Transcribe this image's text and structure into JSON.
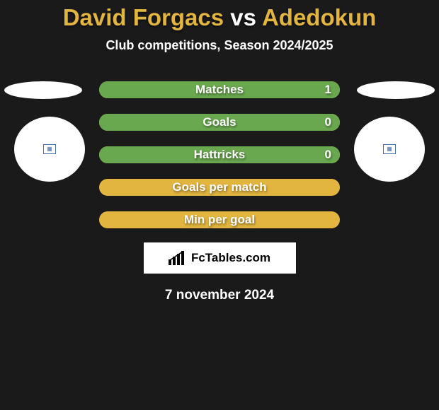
{
  "title": {
    "player1": "David Forgacs",
    "vs_word": "vs",
    "player2": "Adedokun",
    "font_size": 33,
    "color_player": "#e2b440",
    "color_vs": "#ffffff"
  },
  "subtitle": {
    "text": "Club competitions, Season 2024/2025",
    "color": "#ffffff",
    "font_size": 18
  },
  "avatars": {
    "left_oval_color": "#ffffff",
    "right_oval_color": "#ffffff",
    "circle_bg": "#ffffff",
    "inner_border_color": "#4a6fb0",
    "inner_icon_glyph": "▦",
    "inner_icon_color": "#4a6fb0"
  },
  "chart": {
    "bar_bg": "#e2b440",
    "bar_fill": "#6aa84f",
    "label_color": "#ffffff",
    "label_font_size": 17,
    "value_font_size": 17,
    "rows": [
      {
        "label": "Matches",
        "value": "1",
        "fill_pct": 100
      },
      {
        "label": "Goals",
        "value": "0",
        "fill_pct": 100
      },
      {
        "label": "Hattricks",
        "value": "0",
        "fill_pct": 100
      },
      {
        "label": "Goals per match",
        "value": "",
        "fill_pct": 0
      },
      {
        "label": "Min per goal",
        "value": "",
        "fill_pct": 0
      }
    ]
  },
  "logo": {
    "text": "FcTables.com",
    "font_size": 17,
    "bg": "#ffffff",
    "text_color": "#000000"
  },
  "date": {
    "text": "7 november 2024",
    "color": "#ffffff",
    "font_size": 19
  },
  "page_bg": "#1a1a1a"
}
